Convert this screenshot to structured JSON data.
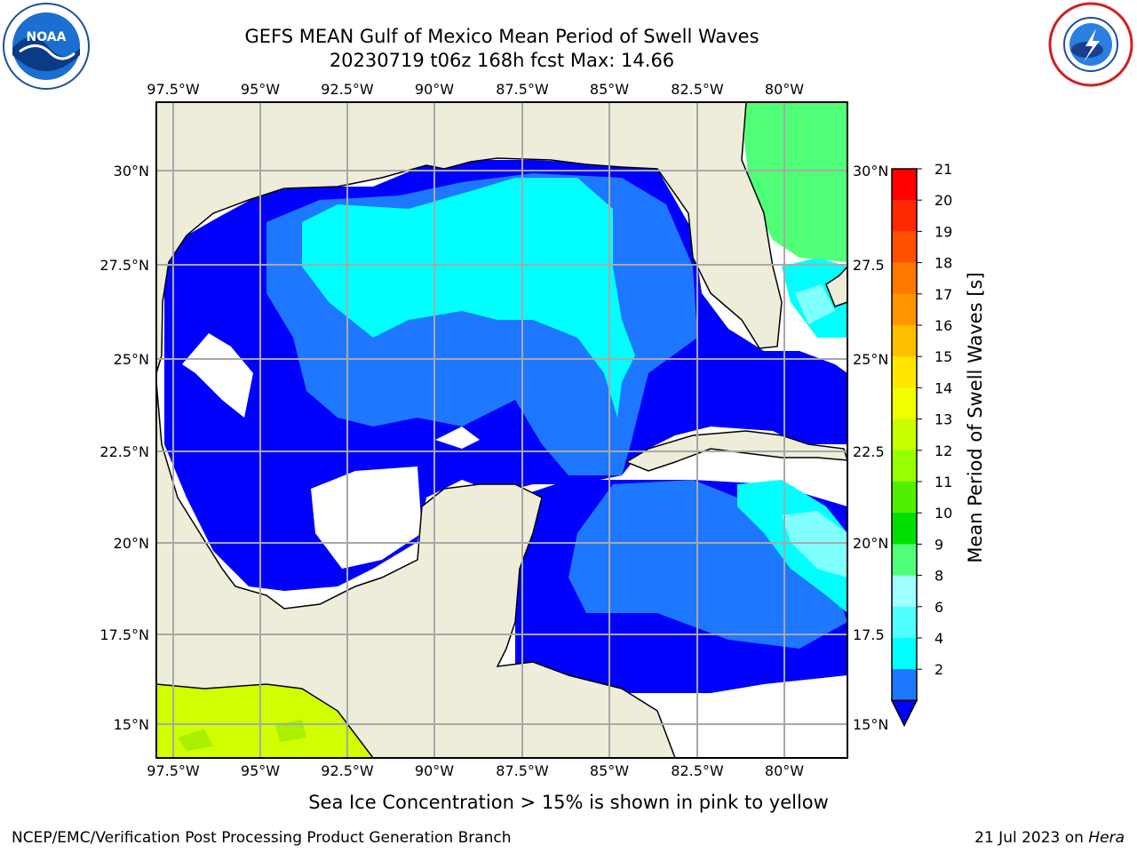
{
  "header": {
    "title_line1": "GEFS MEAN Gulf of Mexico Mean Period of Swell Waves",
    "title_line2": "20230719 t06z 168h fcst   Max: 14.66"
  },
  "logos": {
    "left": "noaa-logo",
    "right": "nws-logo"
  },
  "map": {
    "lon_ticks": [
      "97.5°W",
      "95°W",
      "92.5°W",
      "90°W",
      "87.5°W",
      "85°W",
      "82.5°W",
      "80°W"
    ],
    "lat_ticks_left": [
      "30°N",
      "27.5°N",
      "25°N",
      "22.5°N",
      "20°N",
      "17.5°N",
      "15°N"
    ],
    "lat_ticks_right": [
      "30°N",
      "27.5",
      "25°N",
      "22.5",
      "20°N",
      "17.5",
      "15°N"
    ],
    "land_color": "#eeedda",
    "ocean_colors": {
      "2-4": "#0000ff",
      "4-6": "#1e78ff",
      "6-8": "#00ffff",
      "8-9": "#80ffff",
      "9-10": "#50ff78",
      "14-15": "#d0ff00"
    }
  },
  "colorbar": {
    "label": "Mean Period of Swell Waves [s]",
    "ticks": [
      "21",
      "20",
      "19",
      "18",
      "17",
      "16",
      "15",
      "14",
      "13",
      "12",
      "11",
      "10",
      "9",
      "8",
      "6",
      "4",
      "2"
    ],
    "colors": [
      "#ff0000",
      "#ff2800",
      "#ff5000",
      "#ff7800",
      "#ff9600",
      "#ffbe00",
      "#ffe600",
      "#f0ff00",
      "#c8ff00",
      "#96ff00",
      "#50f000",
      "#00e000",
      "#50ff78",
      "#a0ffff",
      "#50ffff",
      "#00ffff",
      "#1e78ff"
    ],
    "extend_color": "#0000ff"
  },
  "footer": {
    "note": "Sea Ice Concentration > 15% is shown in pink to yellow",
    "credit_left": "NCEP/EMC/Verification Post Processing Product Generation Branch",
    "date_text": "21 Jul 2023 on ",
    "machine": "Hera"
  }
}
